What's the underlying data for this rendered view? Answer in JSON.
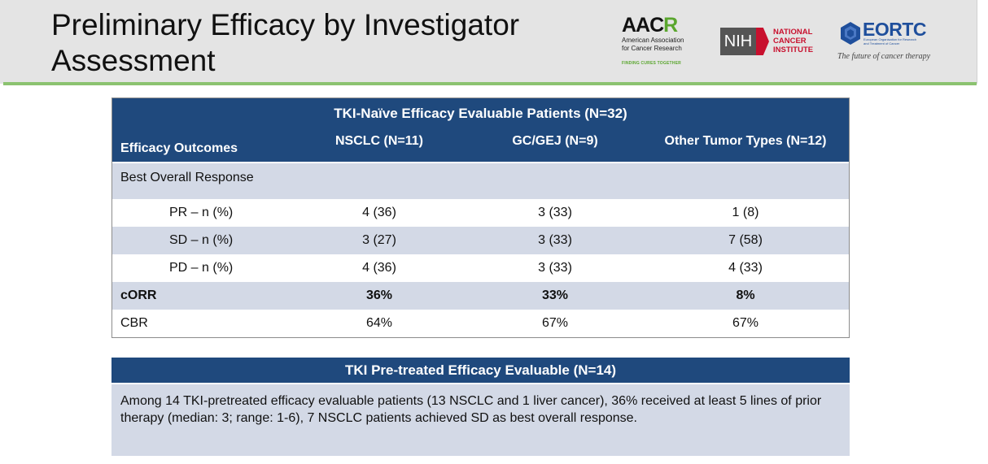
{
  "slide": {
    "title": "Preliminary Efficacy by Investigator Assessment"
  },
  "logos": {
    "aacr": {
      "word_a": "AAC",
      "word_b": "R",
      "subtitle_1": "American Association",
      "subtitle_2": "for Cancer Research",
      "tagline": "FINDING CURES TOGETHER"
    },
    "nih": {
      "mark": "NIH",
      "line1": "NATIONAL",
      "line2": "CANCER",
      "line3": "INSTITUTE"
    },
    "eortc": {
      "word": "EORTC",
      "small_1": "European Organisation for Research",
      "small_2": "and Treatment of Cancer",
      "tagline": "The future of cancer therapy"
    }
  },
  "colors": {
    "header_bg": "#e4e4e4",
    "header_rule": "#8bc270",
    "table_header": "#1f497d",
    "row_shade": "#d3d9e6"
  },
  "efficacy_table": {
    "caption": "TKI-Naïve Efficacy Evaluable Patients (N=32)",
    "columns": [
      "Efficacy Outcomes",
      "NSCLC (N=11)",
      "GC/GEJ (N=9)",
      "Other Tumor Types (N=12)"
    ],
    "section_label": "Best Overall Response",
    "rows": [
      {
        "label": "PR – n (%)",
        "nsclc": "4 (36)",
        "gc_gej": "3 (33)",
        "other": "1 (8)"
      },
      {
        "label": "SD – n (%)",
        "nsclc": "3 (27)",
        "gc_gej": "3 (33)",
        "other": "7 (58)"
      },
      {
        "label": "PD – n (%)",
        "nsclc": "4 (36)",
        "gc_gej": "3 (33)",
        "other": "4 (33)"
      },
      {
        "label": "cORR",
        "nsclc": "36%",
        "gc_gej": "33%",
        "other": "8%"
      },
      {
        "label": "CBR",
        "nsclc": "64%",
        "gc_gej": "67%",
        "other": "67%"
      }
    ]
  },
  "pretreated_box": {
    "title": "TKI Pre-treated Efficacy Evaluable (N=14)",
    "body": "Among 14 TKI-pretreated efficacy evaluable patients (13 NSCLC and 1 liver cancer), 36% received at least 5 lines of prior therapy (median: 3; range: 1-6), 7 NSCLC patients achieved SD as best overall response."
  }
}
